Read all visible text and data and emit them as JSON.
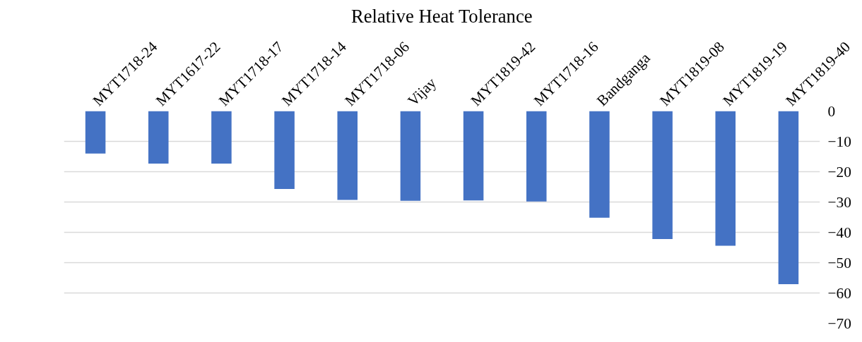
{
  "chart_data": {
    "type": "bar",
    "title": "Relative Heat Tolerance",
    "categories": [
      "MYT1718-24",
      "MYT1617-22",
      "MYT1718-17",
      "MYT1718-14",
      "MYT1718-06",
      "Vijay",
      "MYT1819-42",
      "MYT1718-16",
      "Bandganga",
      "MYT1819-08",
      "MYT1819-19",
      "MYT1819-40"
    ],
    "values": [
      -14.0,
      -17.3,
      -17.3,
      -25.7,
      -29.3,
      -29.6,
      -29.5,
      -29.8,
      -35.2,
      -42.2,
      -44.4,
      -57.1
    ],
    "color": "#4472c4",
    "ylim": [
      -70,
      0
    ],
    "yticks": [
      0,
      -10,
      -20,
      -30,
      -40,
      -50,
      -60,
      -70
    ],
    "grid": "y"
  }
}
